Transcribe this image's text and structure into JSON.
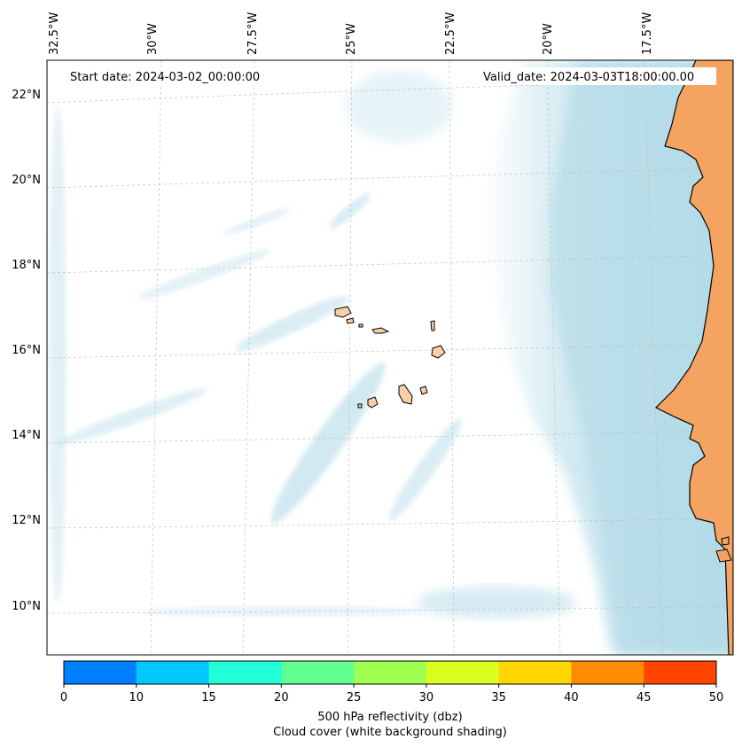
{
  "annotations": {
    "start_date": "Start date: 2024-03-02_00:00:00",
    "valid_date": "Valid_date: 2024-03-03T18:00:00.00"
  },
  "map": {
    "lon_ticks": [
      "32.5°W",
      "30°W",
      "27.5°W",
      "25°W",
      "22.5°W",
      "20°W",
      "17.5°W"
    ],
    "lat_ticks": [
      "22°N",
      "20°N",
      "18°N",
      "16°N",
      "14°N",
      "12°N",
      "10°N"
    ],
    "land_color": "#f4a460",
    "island_color": "#f8cfaa",
    "cloud_color": "#add8e6"
  },
  "colorbar": {
    "ticks": [
      "0",
      "10",
      "15",
      "20",
      "25",
      "30",
      "35",
      "40",
      "45",
      "50"
    ],
    "colors": [
      "#0080ff",
      "#00c8ff",
      "#20ffd8",
      "#60ff90",
      "#a0ff50",
      "#d8ff20",
      "#ffd700",
      "#ff8c00",
      "#ff4500"
    ],
    "label_line1": "500 hPa reflectivity (dbz)",
    "label_line2": "Cloud cover (white background shading)"
  }
}
